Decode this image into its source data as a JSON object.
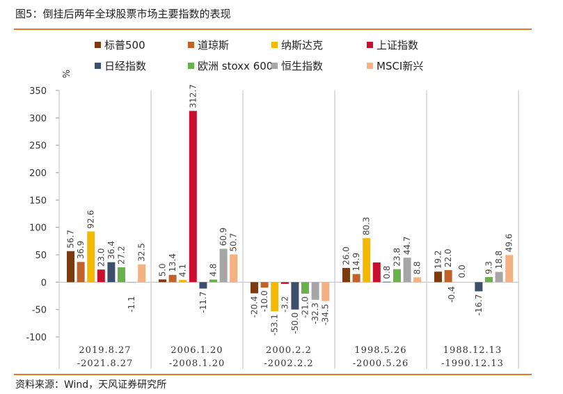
{
  "title": "图5：倒挂后两年全球股票市场主要指数的表现",
  "source": "资料来源：Wind，天风证券研究所",
  "chart_data": {
    "type": "bar",
    "ylabel": "%",
    "ylim": [
      -100,
      350
    ],
    "yticks": [
      350,
      300,
      250,
      200,
      150,
      100,
      50,
      0,
      -50,
      -100
    ],
    "categories": [
      [
        "2019.8.27",
        "-2021.8.27"
      ],
      [
        "2006.1.20",
        "-2008.1.20"
      ],
      [
        "2000.2.2",
        "-2002.2.2"
      ],
      [
        "1998.5.26",
        "-2000.5.26"
      ],
      [
        "1988.12.13",
        "-1990.12.13"
      ]
    ],
    "series": [
      {
        "name": "标普500",
        "color": "#7b3a10",
        "values": [
          56.7,
          5.0,
          -20.4,
          26.0,
          19.2
        ],
        "labels": [
          "56.7",
          "5.0",
          "-20.4",
          "26.0",
          "19.2"
        ]
      },
      {
        "name": "道琼斯",
        "color": "#c0622a",
        "values": [
          36.9,
          13.4,
          -10.0,
          14.9,
          22.0
        ],
        "labels": [
          "36.9",
          "13.4",
          "-10.0",
          "14.9",
          "22.0"
        ]
      },
      {
        "name": "纳斯达克",
        "color": "#f5b800",
        "values": [
          92.6,
          4.1,
          -53.1,
          80.3,
          null
        ],
        "labels": [
          "92.6",
          "4.1",
          "-53.1",
          "80.3",
          ""
        ]
      },
      {
        "name": "上证指数",
        "color": "#c8102e",
        "values": [
          23.0,
          312.7,
          -3.2,
          36.0,
          null
        ],
        "labels": [
          "23.0",
          "312.7",
          "-3.2",
          "",
          ""
        ]
      },
      {
        "name": "日经指数",
        "color": "#3e4f6b",
        "values": [
          36.4,
          -11.7,
          -50.0,
          0.8,
          -16.7
        ],
        "labels": [
          "36.4",
          "-11.7",
          "-50.0",
          "0.8",
          "-16.7"
        ]
      },
      {
        "name": "欧洲 stoxx 600",
        "color": "#6ab04c",
        "values": [
          27.2,
          4.8,
          -21.0,
          23.8,
          9.3
        ],
        "labels": [
          "27.2",
          "4.8",
          "-21.0",
          "23.8",
          "9.3"
        ]
      },
      {
        "name": "恒生指数",
        "color": "#a6a6a6",
        "values": [
          -1.1,
          60.9,
          -32.3,
          44.7,
          18.8
        ],
        "labels": [
          "-1.1",
          "60.9",
          "-32.3",
          "44.7",
          "18.8"
        ]
      },
      {
        "name": "MSCI新兴",
        "color": "#f4b183",
        "values": [
          32.5,
          50.7,
          -34.5,
          8.8,
          49.6
        ],
        "labels": [
          "32.5",
          "50.7",
          "-34.5",
          "8.8",
          "49.6"
        ]
      }
    ],
    "extra_labels": [
      {
        "category": 4,
        "text": "-0.4",
        "after_series": 1
      },
      {
        "category": 4,
        "text": "0.0",
        "after_series": 2
      }
    ]
  }
}
